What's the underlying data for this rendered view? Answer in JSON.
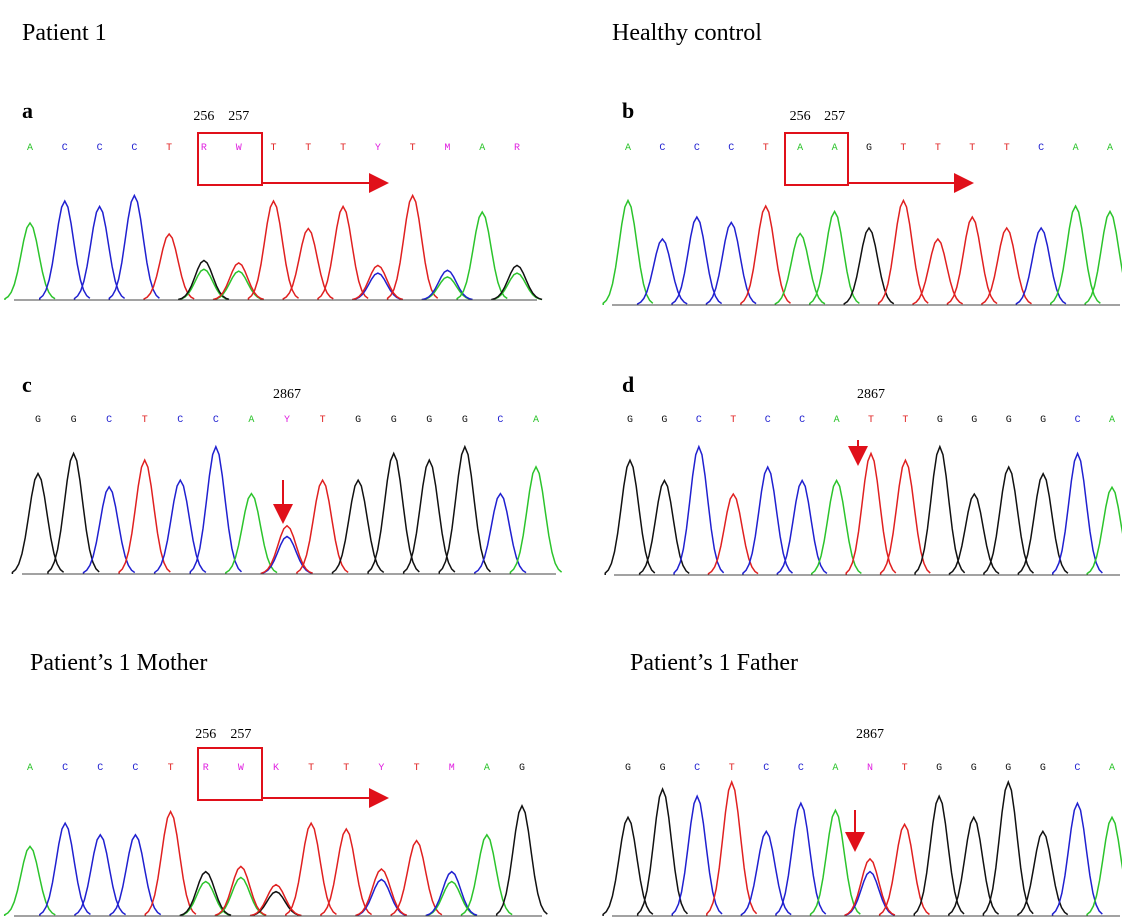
{
  "panels": [
    {
      "heading": "Patient 1",
      "letter": "a",
      "position_labels": [
        "256",
        "257"
      ],
      "bases": [
        "A",
        "C",
        "C",
        "C",
        "T",
        "R",
        "W",
        "T",
        "T",
        "T",
        "Y",
        "T",
        "M",
        "A",
        "R"
      ]
    },
    {
      "heading": "Healthy control",
      "letter": "b",
      "position_labels": [
        "256",
        "257"
      ],
      "bases": [
        "A",
        "C",
        "C",
        "C",
        "T",
        "A",
        "A",
        "G",
        "T",
        "T",
        "T",
        "T",
        "C",
        "A",
        "A"
      ]
    },
    {
      "letter": "c",
      "position_labels": [
        "2867"
      ],
      "bases": [
        "G",
        "G",
        "C",
        "T",
        "C",
        "C",
        "A",
        "Y",
        "T",
        "G",
        "G",
        "G",
        "G",
        "C",
        "A"
      ]
    },
    {
      "letter": "d",
      "position_labels": [
        "2867"
      ],
      "bases": [
        "G",
        "G",
        "C",
        "T",
        "C",
        "C",
        "A",
        "T",
        "T",
        "G",
        "G",
        "G",
        "G",
        "C",
        "A"
      ]
    },
    {
      "heading": "Patient’s 1 Mother",
      "position_labels": [
        "256",
        "257"
      ],
      "bases": [
        "A",
        "C",
        "C",
        "C",
        "T",
        "R",
        "W",
        "K",
        "T",
        "T",
        "Y",
        "T",
        "M",
        "A",
        "G"
      ]
    },
    {
      "heading": "Patient’s 1 Father",
      "position_labels": [
        "2867"
      ],
      "bases": [
        "G",
        "G",
        "C",
        "T",
        "C",
        "C",
        "A",
        "N",
        "T",
        "G",
        "G",
        "G",
        "G",
        "C",
        "A"
      ]
    }
  ]
}
